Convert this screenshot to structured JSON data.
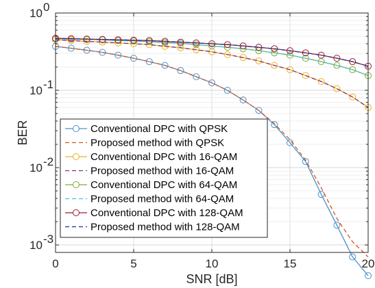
{
  "chart_data": {
    "type": "line",
    "title": "",
    "xlabel": "SNR [dB]",
    "ylabel": "BER",
    "xscale": "linear",
    "yscale": "log",
    "xlim": [
      0,
      20
    ],
    "ylim": [
      0.0008,
      1
    ],
    "grid": true,
    "legend_position": "lower-left",
    "xticks": [
      0,
      5,
      10,
      15,
      20
    ],
    "xtick_labels": [
      "0",
      "5",
      "10",
      "15",
      "20"
    ],
    "yticks": [
      0.001,
      0.01,
      0.1,
      1
    ],
    "ytick_labels": [
      {
        "base": "10",
        "exp": "-3"
      },
      {
        "base": "10",
        "exp": "-2"
      },
      {
        "base": "10",
        "exp": "-1"
      },
      {
        "base": "10",
        "exp": "0"
      }
    ],
    "x": [
      0,
      1,
      2,
      3,
      4,
      5,
      6,
      7,
      8,
      9,
      10,
      11,
      12,
      13,
      14,
      15,
      16,
      17,
      18,
      19,
      20
    ],
    "series": [
      {
        "name": "Conventional DPC with QPSK",
        "color": "#4a90c8",
        "style": "solid",
        "marker": "circle",
        "values": [
          0.37,
          0.35,
          0.33,
          0.31,
          0.285,
          0.26,
          0.235,
          0.21,
          0.18,
          0.15,
          0.125,
          0.1,
          0.075,
          0.055,
          0.036,
          0.021,
          0.012,
          0.0045,
          0.0018,
          0.0007,
          0.0004
        ]
      },
      {
        "name": "Proposed method with QPSK",
        "color": "#d95319",
        "style": "dashed",
        "marker": "none",
        "values": [
          0.37,
          0.35,
          0.33,
          0.31,
          0.285,
          0.26,
          0.235,
          0.21,
          0.18,
          0.15,
          0.125,
          0.1,
          0.075,
          0.055,
          0.037,
          0.023,
          0.0125,
          0.0055,
          0.0022,
          0.0011,
          0.0007
        ]
      },
      {
        "name": "Conventional DPC with 16-QAM",
        "color": "#edb120",
        "style": "solid",
        "marker": "circle",
        "values": [
          0.45,
          0.44,
          0.43,
          0.42,
          0.41,
          0.4,
          0.39,
          0.37,
          0.355,
          0.335,
          0.315,
          0.29,
          0.265,
          0.24,
          0.21,
          0.185,
          0.155,
          0.13,
          0.105,
          0.082,
          0.06
        ]
      },
      {
        "name": "Proposed method with 16-QAM",
        "color": "#7e2f8e",
        "style": "dashed",
        "marker": "none",
        "values": [
          0.45,
          0.44,
          0.43,
          0.42,
          0.41,
          0.4,
          0.39,
          0.37,
          0.355,
          0.335,
          0.315,
          0.29,
          0.265,
          0.24,
          0.21,
          0.185,
          0.155,
          0.13,
          0.105,
          0.082,
          0.06
        ]
      },
      {
        "name": "Conventional DPC with 64-QAM",
        "color": "#77ac30",
        "style": "solid",
        "marker": "circle",
        "values": [
          0.465,
          0.46,
          0.455,
          0.45,
          0.44,
          0.435,
          0.425,
          0.415,
          0.405,
          0.39,
          0.375,
          0.36,
          0.345,
          0.325,
          0.305,
          0.285,
          0.26,
          0.235,
          0.21,
          0.185,
          0.155
        ]
      },
      {
        "name": "Proposed method with 64-QAM",
        "color": "#4dbeee",
        "style": "dashed",
        "marker": "none",
        "values": [
          0.465,
          0.46,
          0.455,
          0.45,
          0.44,
          0.435,
          0.425,
          0.415,
          0.405,
          0.39,
          0.375,
          0.36,
          0.345,
          0.325,
          0.305,
          0.285,
          0.26,
          0.235,
          0.21,
          0.185,
          0.155
        ]
      },
      {
        "name": "Conventional DPC with 128-QAM",
        "color": "#a2142f",
        "style": "solid",
        "marker": "circle",
        "values": [
          0.47,
          0.465,
          0.46,
          0.455,
          0.45,
          0.445,
          0.44,
          0.43,
          0.42,
          0.41,
          0.4,
          0.39,
          0.375,
          0.36,
          0.345,
          0.325,
          0.305,
          0.285,
          0.26,
          0.235,
          0.205
        ]
      },
      {
        "name": "Proposed method with 128-QAM",
        "color": "#0d3b8a",
        "style": "dashed",
        "marker": "none",
        "values": [
          0.47,
          0.465,
          0.46,
          0.455,
          0.45,
          0.445,
          0.44,
          0.43,
          0.42,
          0.41,
          0.4,
          0.39,
          0.375,
          0.36,
          0.345,
          0.325,
          0.305,
          0.285,
          0.26,
          0.235,
          0.205
        ]
      }
    ]
  }
}
